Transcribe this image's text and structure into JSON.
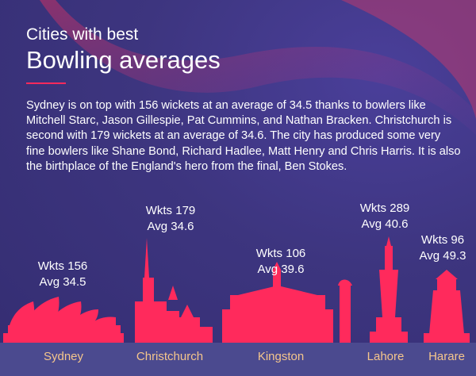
{
  "header": {
    "kicker": "Cities with best",
    "title": "Bowling averages"
  },
  "description": "Sydney is on top with 156 wickets at an average of 34.5 thanks to bowlers like Mitchell Starc, Jason Gillespie, Pat Cummins, and Nathan Bracken. Christchurch is second with 179 wickets at an average of 34.6. The city has produced some very fine bowlers like Shane Bond, Richard Hadlee, Matt Henry and Chris Harris. It is also the birthplace of the England's hero from the final, Ben Stokes.",
  "colors": {
    "background": "#3d357f",
    "accent": "#ff2a5c",
    "ground": "#4b4a8f",
    "city_label": "#f5c68c"
  },
  "chart_data": {
    "type": "bar",
    "categories": [
      "Sydney",
      "Christchurch",
      "Kingston",
      "Lahore",
      "Harare"
    ],
    "series": [
      {
        "name": "Wkts",
        "values": [
          156,
          179,
          106,
          289,
          96
        ]
      },
      {
        "name": "Avg",
        "values": [
          34.5,
          34.6,
          39.6,
          40.6,
          49.3
        ]
      }
    ],
    "labels": [
      {
        "wkts": "Wkts 156",
        "avg": "Avg 34.5"
      },
      {
        "wkts": "Wkts 179",
        "avg": "Avg 34.6"
      },
      {
        "wkts": "Wkts 106",
        "avg": "Avg 39.6"
      },
      {
        "wkts": "Wkts 289",
        "avg": "Avg 40.6"
      },
      {
        "wkts": "Wkts 96",
        "avg": "Avg 49.3"
      }
    ],
    "landmark_icons": [
      "opera-house-icon",
      "cathedral-icon",
      "colonial-building-icon",
      "minar-tower-icon",
      "lighthouse-icon"
    ]
  }
}
